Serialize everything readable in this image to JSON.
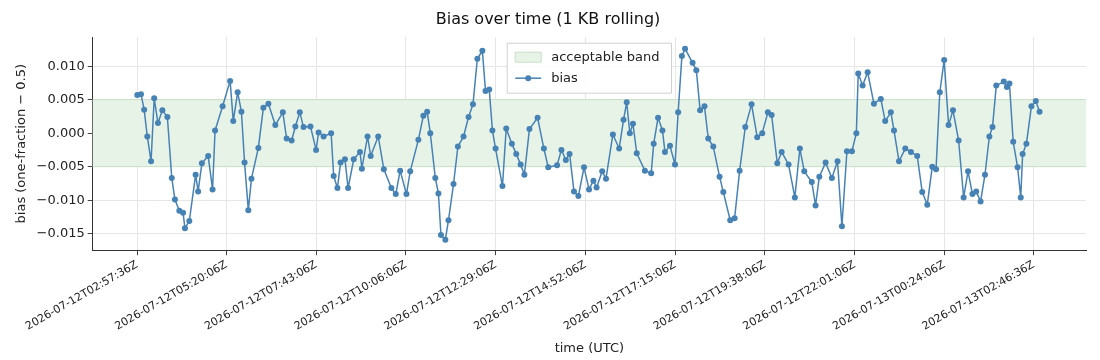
{
  "chart_data": {
    "type": "line",
    "title": "Bias over time (1 KB rolling)",
    "xlabel": "time (UTC)",
    "ylabel": "bias (one-fraction − 0.5)",
    "xlim": [
      "2026-07-12T01:47",
      "2026-07-13T04:10"
    ],
    "ylim": [
      -0.01747,
      0.01432
    ],
    "xticks": [
      {
        "value": "2026-07-12T02:57:36",
        "label": "2026-07-12T02:57:36Z"
      },
      {
        "value": "2026-07-12T05:20:06",
        "label": "2026-07-12T05:20:06Z"
      },
      {
        "value": "2026-07-12T07:43:06",
        "label": "2026-07-12T07:43:06Z"
      },
      {
        "value": "2026-07-12T10:06:06",
        "label": "2026-07-12T10:06:06Z"
      },
      {
        "value": "2026-07-12T12:29:06",
        "label": "2026-07-12T12:29:06Z"
      },
      {
        "value": "2026-07-12T14:52:06",
        "label": "2026-07-12T14:52:06Z"
      },
      {
        "value": "2026-07-12T17:15:06",
        "label": "2026-07-12T17:15:06Z"
      },
      {
        "value": "2026-07-12T19:38:06",
        "label": "2026-07-12T19:38:06Z"
      },
      {
        "value": "2026-07-12T22:01:06",
        "label": "2026-07-12T22:01:06Z"
      },
      {
        "value": "2026-07-13T00:24:06",
        "label": "2026-07-13T00:24:06Z"
      },
      {
        "value": "2026-07-13T02:46:36",
        "label": "2026-07-13T02:46:36Z"
      }
    ],
    "yticks": [
      {
        "value": -0.015,
        "label": "−0.015"
      },
      {
        "value": -0.01,
        "label": "−0.010"
      },
      {
        "value": -0.005,
        "label": "−0.005"
      },
      {
        "value": 0,
        "label": "0.000"
      },
      {
        "value": 0.005,
        "label": "0.005"
      },
      {
        "value": 0.01,
        "label": "0.010"
      }
    ],
    "bands": [
      {
        "axis": "y",
        "from": -0.005,
        "to": 0.005,
        "label": "acceptable band",
        "color": "#e8f3e8"
      }
    ],
    "grid": true,
    "legend": "top",
    "marker": "circle",
    "line_style": "solid",
    "x": [
      "2026-07-12T02:58",
      "2026-07-12T03:04",
      "2026-07-12T03:09",
      "2026-07-12T03:14",
      "2026-07-12T03:20",
      "2026-07-12T03:25",
      "2026-07-12T03:31",
      "2026-07-12T03:38",
      "2026-07-12T03:46",
      "2026-07-12T03:53",
      "2026-07-12T03:58",
      "2026-07-12T04:05",
      "2026-07-12T04:11",
      "2026-07-12T04:14",
      "2026-07-12T04:21",
      "2026-07-12T04:31",
      "2026-07-12T04:35",
      "2026-07-12T04:41",
      "2026-07-12T04:51",
      "2026-07-12T04:58",
      "2026-07-12T05:02",
      "2026-07-12T05:14",
      "2026-07-12T05:26",
      "2026-07-12T05:31",
      "2026-07-12T05:38",
      "2026-07-12T05:44",
      "2026-07-12T05:49",
      "2026-07-12T05:55",
      "2026-07-12T06:00",
      "2026-07-12T06:11",
      "2026-07-12T06:19",
      "2026-07-12T06:27",
      "2026-07-12T06:38",
      "2026-07-12T06:50",
      "2026-07-12T06:56",
      "2026-07-12T07:04",
      "2026-07-12T07:10",
      "2026-07-12T07:17",
      "2026-07-12T07:23",
      "2026-07-12T07:34",
      "2026-07-12T07:43",
      "2026-07-12T07:47",
      "2026-07-12T07:55",
      "2026-07-12T08:07",
      "2026-07-12T08:11",
      "2026-07-12T08:17",
      "2026-07-12T08:22",
      "2026-07-12T08:29",
      "2026-07-12T08:34",
      "2026-07-12T08:43",
      "2026-07-12T08:53",
      "2026-07-12T08:56",
      "2026-07-12T09:05",
      "2026-07-12T09:10",
      "2026-07-12T09:22",
      "2026-07-12T09:31",
      "2026-07-12T09:43",
      "2026-07-12T09:50",
      "2026-07-12T09:57",
      "2026-07-12T10:07",
      "2026-07-12T10:13",
      "2026-07-12T10:26",
      "2026-07-12T10:34",
      "2026-07-12T10:40",
      "2026-07-12T10:45",
      "2026-07-12T10:53",
      "2026-07-12T10:58",
      "2026-07-12T11:02",
      "2026-07-12T11:09",
      "2026-07-12T11:14",
      "2026-07-12T11:22",
      "2026-07-12T11:29",
      "2026-07-12T11:38",
      "2026-07-12T11:46",
      "2026-07-12T11:53",
      "2026-07-12T12:00",
      "2026-07-12T12:08",
      "2026-07-12T12:13",
      "2026-07-12T12:19",
      "2026-07-12T12:24",
      "2026-07-12T12:29",
      "2026-07-12T12:40",
      "2026-07-12T12:46",
      "2026-07-12T12:55",
      "2026-07-12T13:02",
      "2026-07-12T13:09",
      "2026-07-12T13:15",
      "2026-07-12T13:23",
      "2026-07-12T13:36",
      "2026-07-12T13:46",
      "2026-07-12T13:53",
      "2026-07-12T14:07",
      "2026-07-12T14:14",
      "2026-07-12T14:21",
      "2026-07-12T14:27",
      "2026-07-12T14:34",
      "2026-07-12T14:41",
      "2026-07-12T14:50",
      "2026-07-12T14:58",
      "2026-07-12T15:05",
      "2026-07-12T15:10",
      "2026-07-12T15:19",
      "2026-07-12T15:25",
      "2026-07-12T15:36",
      "2026-07-12T15:46",
      "2026-07-12T15:53",
      "2026-07-12T15:58",
      "2026-07-12T16:03",
      "2026-07-12T16:08",
      "2026-07-12T16:14",
      "2026-07-12T16:27",
      "2026-07-12T16:37",
      "2026-07-12T16:41",
      "2026-07-12T16:48",
      "2026-07-12T16:55",
      "2026-07-12T16:59",
      "2026-07-12T17:07",
      "2026-07-12T17:15",
      "2026-07-12T17:20",
      "2026-07-12T17:26",
      "2026-07-12T17:31",
      "2026-07-12T17:43",
      "2026-07-12T17:49",
      "2026-07-12T17:55",
      "2026-07-12T18:02",
      "2026-07-12T18:08",
      "2026-07-12T18:16",
      "2026-07-12T18:26",
      "2026-07-12T18:32",
      "2026-07-12T18:43",
      "2026-07-12T18:50",
      "2026-07-12T18:58",
      "2026-07-12T19:07",
      "2026-07-12T19:17",
      "2026-07-12T19:26",
      "2026-07-12T19:34",
      "2026-07-12T19:43",
      "2026-07-12T19:49",
      "2026-07-12T19:58",
      "2026-07-12T20:05",
      "2026-07-12T20:16",
      "2026-07-12T20:26",
      "2026-07-12T20:34",
      "2026-07-12T20:41",
      "2026-07-12T20:53",
      "2026-07-12T20:59",
      "2026-07-12T21:05",
      "2026-07-12T21:15",
      "2026-07-12T21:25",
      "2026-07-12T21:34",
      "2026-07-12T21:41",
      "2026-07-12T21:49",
      "2026-07-12T21:57",
      "2026-07-12T22:04",
      "2026-07-12T22:07",
      "2026-07-12T22:14",
      "2026-07-12T22:22",
      "2026-07-12T22:32",
      "2026-07-12T22:43",
      "2026-07-12T22:50",
      "2026-07-12T22:59",
      "2026-07-12T23:04",
      "2026-07-12T23:12",
      "2026-07-12T23:22",
      "2026-07-12T23:31",
      "2026-07-12T23:41",
      "2026-07-12T23:49",
      "2026-07-12T23:57",
      "2026-07-13T00:05",
      "2026-07-13T00:11",
      "2026-07-13T00:17",
      "2026-07-13T00:24",
      "2026-07-13T00:31",
      "2026-07-13T00:38",
      "2026-07-13T00:47",
      "2026-07-13T00:55",
      "2026-07-13T01:02",
      "2026-07-13T01:09",
      "2026-07-13T01:15",
      "2026-07-13T01:22",
      "2026-07-13T01:29",
      "2026-07-13T01:36",
      "2026-07-13T01:41",
      "2026-07-13T01:47",
      "2026-07-13T01:59",
      "2026-07-13T02:04",
      "2026-07-13T02:08",
      "2026-07-13T02:14",
      "2026-07-13T02:21",
      "2026-07-13T02:26",
      "2026-07-13T02:29",
      "2026-07-13T02:35",
      "2026-07-13T02:43",
      "2026-07-13T02:50",
      "2026-07-13T02:56"
    ],
    "series": [
      {
        "name": "bias",
        "color": "#4682b4",
        "values": [
          0.0057,
          0.0058,
          0.0035,
          -0.0005,
          -0.0042,
          0.0052,
          0.0015,
          0.0034,
          0.0024,
          -0.0067,
          -0.0099,
          -0.0116,
          -0.0119,
          -0.0142,
          -0.0131,
          -0.0062,
          -0.0087,
          -0.0045,
          -0.0034,
          -0.0084,
          0.0004,
          0.004,
          0.0078,
          0.0018,
          0.0061,
          0.0032,
          -0.0044,
          -0.0115,
          -0.0068,
          -0.0022,
          0.0038,
          0.0044,
          0.0012,
          0.0031,
          -0.0008,
          -0.0011,
          0.001,
          0.0031,
          0.0009,
          0.001,
          -0.0025,
          0.0001,
          -0.0005,
          0.0,
          -0.0064,
          -0.0082,
          -0.0044,
          -0.0039,
          -0.0082,
          -0.0039,
          -0.0028,
          -0.0053,
          -0.0005,
          -0.0034,
          -0.0005,
          -0.0054,
          -0.0082,
          -0.0091,
          -0.0056,
          -0.0091,
          -0.0057,
          -0.001,
          0.0026,
          0.0032,
          0.0,
          -0.0067,
          -0.009,
          -0.0152,
          -0.0159,
          -0.013,
          -0.0076,
          -0.002,
          -0.0005,
          0.0024,
          0.0043,
          0.0111,
          0.0123,
          0.0063,
          0.0065,
          0.0004,
          -0.0023,
          -0.0079,
          0.0007,
          -0.0016,
          -0.0031,
          -0.0047,
          -0.0062,
          0.0006,
          0.0023,
          -0.0023,
          -0.0051,
          -0.0048,
          -0.0025,
          -0.004,
          -0.0031,
          -0.0087,
          -0.0094,
          -0.0051,
          -0.0084,
          -0.0071,
          -0.0081,
          -0.0057,
          -0.0068,
          -0.0002,
          -0.0023,
          0.002,
          0.0046,
          0.0,
          0.0014,
          -0.003,
          -0.0056,
          -0.006,
          -0.0016,
          0.0023,
          0.0004,
          -0.0028,
          -0.0019,
          -0.0047,
          0.0031,
          0.0115,
          0.0126,
          0.0105,
          0.0094,
          0.0034,
          0.004,
          -0.0008,
          -0.002,
          -0.0065,
          -0.0088,
          -0.013,
          -0.0127,
          -0.0056,
          0.0009,
          0.0043,
          -0.0006,
          0.0,
          0.0031,
          0.0027,
          -0.0045,
          -0.0028,
          -0.0047,
          -0.0096,
          -0.0023,
          -0.0057,
          -0.0073,
          -0.0108,
          -0.0065,
          -0.0044,
          -0.0067,
          -0.0042,
          -0.0139,
          -0.0027,
          -0.0027,
          0.0,
          0.0089,
          0.0071,
          0.0091,
          0.0044,
          0.0051,
          0.0018,
          0.0031,
          0.0004,
          -0.0042,
          -0.0023,
          -0.0028,
          -0.0034,
          -0.0088,
          -0.0107,
          -0.005,
          -0.0054,
          0.0061,
          0.0109,
          0.0012,
          0.0034,
          -0.0011,
          -0.0096,
          -0.0057,
          -0.0091,
          -0.0087,
          -0.0102,
          -0.0062,
          -0.0005,
          0.0009,
          0.0071,
          0.0077,
          0.0069,
          0.0074,
          -0.0013,
          -0.0051,
          -0.0096,
          -0.0031,
          -0.0016,
          0.004,
          0.0048,
          0.0032
        ]
      }
    ]
  }
}
